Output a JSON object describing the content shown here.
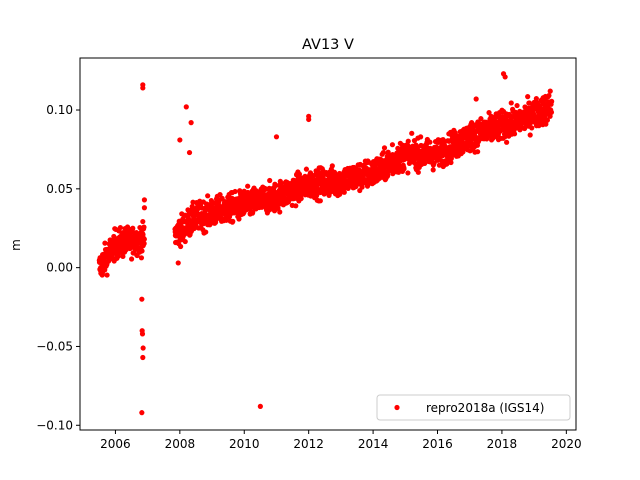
{
  "chart_data": {
    "type": "scatter",
    "title": "AV13 V",
    "xlabel": "",
    "ylabel": "m",
    "xlim": [
      2004.9,
      2020.3
    ],
    "ylim": [
      -0.103,
      0.133
    ],
    "xticks": [
      2006,
      2008,
      2010,
      2012,
      2014,
      2016,
      2018,
      2020
    ],
    "xtick_labels": [
      "2006",
      "2008",
      "2010",
      "2012",
      "2014",
      "2016",
      "2018",
      "2020"
    ],
    "yticks": [
      -0.1,
      -0.05,
      0.0,
      0.05,
      0.1
    ],
    "ytick_labels": [
      "−0.10",
      "−0.05",
      "0.00",
      "0.05",
      "0.10"
    ],
    "grid": false,
    "legend_position": "lower-right",
    "series": [
      {
        "name": "repro2018a (IGS14)",
        "color": "#ff0000",
        "marker": "circle",
        "trend_points": [
          [
            2005.5,
            0.0
          ],
          [
            2006.0,
            0.015
          ],
          [
            2006.8,
            0.018
          ],
          [
            2007.8,
            0.02
          ],
          [
            2008.5,
            0.032
          ],
          [
            2010.0,
            0.04
          ],
          [
            2011.0,
            0.045
          ],
          [
            2012.0,
            0.053
          ],
          [
            2013.0,
            0.055
          ],
          [
            2014.0,
            0.06
          ],
          [
            2015.0,
            0.072
          ],
          [
            2016.0,
            0.072
          ],
          [
            2017.0,
            0.083
          ],
          [
            2018.0,
            0.09
          ],
          [
            2018.5,
            0.093
          ],
          [
            2019.5,
            0.102
          ]
        ],
        "outliers": [
          [
            2006.85,
            0.116
          ],
          [
            2006.85,
            0.114
          ],
          [
            2006.82,
            -0.02
          ],
          [
            2006.83,
            -0.04
          ],
          [
            2006.84,
            -0.042
          ],
          [
            2006.86,
            -0.051
          ],
          [
            2006.85,
            -0.057
          ],
          [
            2006.82,
            -0.092
          ],
          [
            2010.5,
            -0.088
          ],
          [
            2008.2,
            0.102
          ],
          [
            2008.35,
            0.092
          ],
          [
            2008.0,
            0.081
          ],
          [
            2008.3,
            0.073
          ],
          [
            2012.0,
            0.096
          ],
          [
            2012.0,
            0.094
          ],
          [
            2011.0,
            0.083
          ],
          [
            2018.05,
            0.123
          ],
          [
            2018.1,
            0.121
          ],
          [
            2007.95,
            0.003
          ],
          [
            2006.9,
            0.043
          ],
          [
            2006.9,
            0.038
          ],
          [
            2014.6,
            0.078
          ],
          [
            2016.5,
            0.084
          ],
          [
            2017.2,
            0.107
          ],
          [
            2019.5,
            0.112
          ]
        ]
      }
    ]
  }
}
